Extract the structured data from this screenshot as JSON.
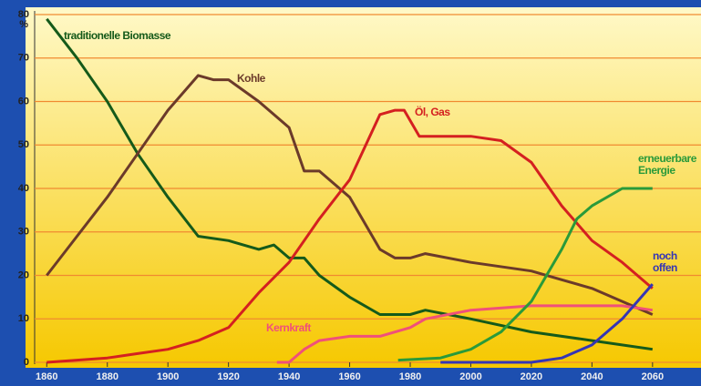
{
  "chart_data": {
    "type": "line",
    "y_unit": "%",
    "xlim": [
      1856,
      2076
    ],
    "ylim": [
      0,
      80
    ],
    "xticks": [
      1860,
      1880,
      1900,
      1920,
      1940,
      1960,
      1980,
      2000,
      2020,
      2040,
      2060
    ],
    "yticks": [
      0,
      10,
      20,
      30,
      40,
      50,
      60,
      70,
      80
    ],
    "grid": true,
    "series": [
      {
        "name": "traditionelle Biomasse",
        "color": "#155a1a",
        "x": [
          1860,
          1870,
          1880,
          1890,
          1900,
          1910,
          1920,
          1930,
          1935,
          1940,
          1945,
          1950,
          1960,
          1970,
          1980,
          1985,
          2000,
          2020,
          2040,
          2060
        ],
        "values": [
          79,
          70,
          60,
          48,
          38,
          29,
          28,
          26,
          27,
          24,
          24,
          20,
          15,
          11,
          11,
          12,
          10,
          7,
          5,
          3
        ]
      },
      {
        "name": "Kohle",
        "color": "#6b3a2a",
        "x": [
          1860,
          1870,
          1880,
          1890,
          1900,
          1910,
          1915,
          1920,
          1930,
          1940,
          1945,
          1950,
          1960,
          1970,
          1975,
          1980,
          1985,
          2000,
          2020,
          2030,
          2040,
          2050,
          2060
        ],
        "values": [
          20,
          29,
          38,
          48,
          58,
          66,
          65,
          65,
          60,
          54,
          44,
          44,
          38,
          26,
          24,
          24,
          25,
          23,
          21,
          19,
          17,
          14,
          11
        ]
      },
      {
        "name": "Öl, Gas",
        "color": "#d42020",
        "x": [
          1860,
          1880,
          1890,
          1900,
          1910,
          1920,
          1930,
          1940,
          1950,
          1960,
          1970,
          1975,
          1978,
          1983,
          2000,
          2010,
          2020,
          2030,
          2040,
          2050,
          2060
        ],
        "values": [
          0,
          1,
          2,
          3,
          5,
          8,
          16,
          23,
          33,
          42,
          57,
          58,
          58,
          52,
          52,
          51,
          46,
          36,
          28,
          23,
          17
        ]
      },
      {
        "name": "Kernkraft",
        "color": "#f0507a",
        "x": [
          1936,
          1940,
          1945,
          1950,
          1960,
          1970,
          1980,
          1985,
          2000,
          2020,
          2040,
          2050,
          2060
        ],
        "values": [
          0,
          0,
          3,
          5,
          6,
          6,
          8,
          10,
          12,
          13,
          13,
          13,
          12
        ]
      },
      {
        "name": "erneuerbare Energie",
        "color": "#2a9a3a",
        "x": [
          1976,
          1990,
          2000,
          2010,
          2020,
          2030,
          2035,
          2040,
          2050,
          2060
        ],
        "values": [
          0.5,
          1,
          3,
          7,
          14,
          26,
          33,
          36,
          40,
          40
        ]
      },
      {
        "name": "noch offen",
        "color": "#3535b5",
        "x": [
          1990,
          2020,
          2030,
          2040,
          2050,
          2060
        ],
        "values": [
          0,
          0,
          1,
          4,
          10,
          18
        ]
      }
    ]
  }
}
